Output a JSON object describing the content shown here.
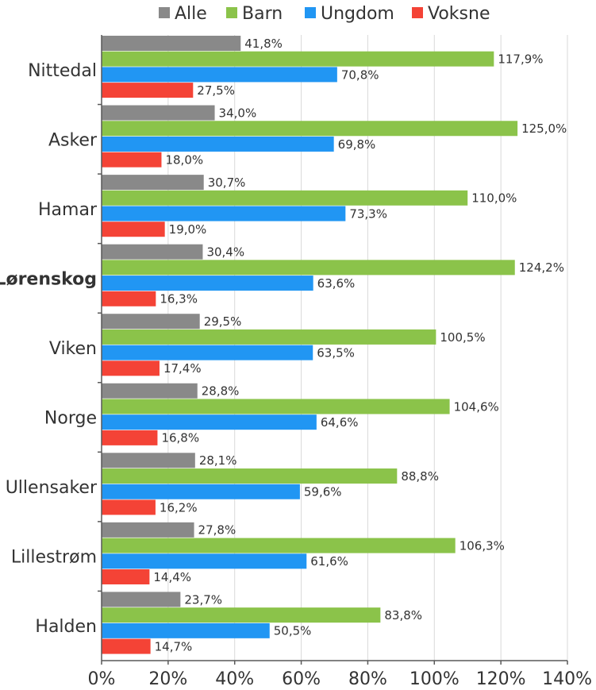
{
  "chart_data": {
    "type": "bar",
    "orientation": "horizontal",
    "categories": [
      "Nittedal",
      "Asker",
      "Hamar",
      "Lørenskog",
      "Viken",
      "Norge",
      "Ullensaker",
      "Lillestrøm",
      "Halden"
    ],
    "highlighted_category": "Lørenskog",
    "series": [
      {
        "name": "Alle",
        "color": "#898989",
        "values": [
          41.8,
          34.0,
          30.7,
          30.4,
          29.5,
          28.8,
          28.1,
          27.8,
          23.7
        ],
        "labels": [
          "41,8%",
          "34,0%",
          "30,7%",
          "30,4%",
          "29,5%",
          "28,8%",
          "28,1%",
          "27,8%",
          "23,7%"
        ]
      },
      {
        "name": "Barn",
        "color": "#8bc34a",
        "values": [
          117.9,
          125.0,
          110.0,
          124.2,
          100.5,
          104.6,
          88.8,
          106.3,
          83.8
        ],
        "labels": [
          "117,9%",
          "125,0%",
          "110,0%",
          "124,2%",
          "100,5%",
          "104,6%",
          "88,8%",
          "106,3%",
          "83,8%"
        ]
      },
      {
        "name": "Ungdom",
        "color": "#2196f3",
        "values": [
          70.8,
          69.8,
          73.3,
          63.6,
          63.5,
          64.6,
          59.6,
          61.6,
          50.5
        ],
        "labels": [
          "70,8%",
          "69,8%",
          "73,3%",
          "63,6%",
          "63,5%",
          "64,6%",
          "59,6%",
          "61,6%",
          "50,5%"
        ]
      },
      {
        "name": "Voksne",
        "color": "#f44336",
        "values": [
          27.5,
          18.0,
          19.0,
          16.3,
          17.4,
          16.8,
          16.2,
          14.4,
          14.7
        ],
        "labels": [
          "27,5%",
          "18,0%",
          "19,0%",
          "16,3%",
          "17,4%",
          "16,8%",
          "16,2%",
          "14,4%",
          "14,7%"
        ]
      }
    ],
    "xlim": [
      0,
      140
    ],
    "x_ticks": [
      0,
      20,
      40,
      60,
      80,
      100,
      120,
      140
    ],
    "x_tick_labels": [
      "0%",
      "20%",
      "40%",
      "60%",
      "80%",
      "100%",
      "120%",
      "140%"
    ],
    "grid": "vertical",
    "legend_position": "top"
  }
}
